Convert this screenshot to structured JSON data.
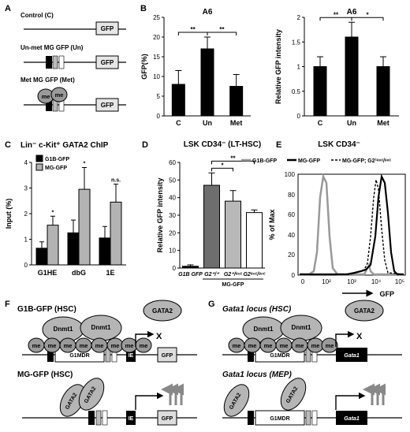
{
  "panels": {
    "A": {
      "letter": "A",
      "constructs": [
        {
          "label": "Control (C)",
          "gfp": "GFP"
        },
        {
          "label": "Un-met MG GFP (Un)",
          "gfp": "GFP"
        },
        {
          "label": "Met MG GFP (Met)",
          "gfp": "GFP",
          "me": "me"
        }
      ]
    },
    "B": {
      "letter": "B"
    },
    "C": {
      "letter": "C"
    },
    "D": {
      "letter": "D"
    },
    "E": {
      "letter": "E",
      "title": "LSK CD34⁻",
      "legend": [
        "G1B-GFP",
        "MG-GFP",
        "MG-GFP; G2¹ᵉⁿᶜ/ᵉⁿᶜ"
      ],
      "xlabel": "GFP",
      "ylabel": "% of Max",
      "xticks": [
        "0",
        "10²",
        "10³",
        "10⁴",
        "10⁵"
      ],
      "yticks": [
        "0",
        "20",
        "40",
        "60",
        "80",
        "100"
      ]
    },
    "F": {
      "letter": "F",
      "top_title": "G1B-GFP (HSC)",
      "bottom_title": "MG-GFP (HSC)",
      "gata2": "GATA2",
      "dnmt1": "Dnmt1",
      "me": "me",
      "g1mdr": "G1MDR",
      "ie": "IE",
      "gfp": "GFP",
      "x_mark": "X"
    },
    "G": {
      "letter": "G",
      "top_title": "Gata1 locus (HSC)",
      "bottom_title": "Gata1 locus (MEP)",
      "gata2": "GATA2",
      "dnmt1": "Dnmt1",
      "me": "me",
      "g1mdr": "G1MDR",
      "gata1": "Gata1",
      "x_mark": "X"
    }
  },
  "chart_data": [
    {
      "id": "B-left",
      "type": "bar",
      "title": "A6",
      "ylabel": "GFP(%)",
      "categories": [
        "C",
        "Un",
        "Met"
      ],
      "values": [
        8,
        17,
        7.5
      ],
      "errors": [
        3.5,
        3,
        3
      ],
      "ylim": [
        0,
        25
      ],
      "yticks": [
        0,
        5,
        10,
        15,
        20,
        25
      ],
      "significance": [
        {
          "from": 0,
          "to": 1,
          "label": "**"
        },
        {
          "from": 1,
          "to": 2,
          "label": "**"
        }
      ],
      "color": "#000000"
    },
    {
      "id": "B-right",
      "type": "bar",
      "title": "A6",
      "ylabel": "Relative GFP intensity",
      "categories": [
        "C",
        "Un",
        "Met"
      ],
      "values": [
        1.0,
        1.6,
        1.0
      ],
      "errors": [
        0.2,
        0.3,
        0.2
      ],
      "ylim": [
        0,
        2
      ],
      "yticks": [
        0,
        0.5,
        1,
        1.5,
        2
      ],
      "significance": [
        {
          "from": 0,
          "to": 1,
          "label": "**"
        },
        {
          "from": 1,
          "to": 2,
          "label": "*"
        }
      ],
      "color": "#000000"
    },
    {
      "id": "C",
      "type": "bar",
      "title": "Lin⁻ c-Kit⁺ GATA2 ChIP",
      "ylabel": "Input (%)",
      "categories": [
        "G1HE",
        "dbG",
        "1E"
      ],
      "series": [
        {
          "name": "G1B-GFP",
          "values": [
            0.65,
            1.25,
            1.05
          ],
          "errors": [
            0.25,
            0.5,
            0.45
          ],
          "color": "#000000"
        },
        {
          "name": "MG-GFP",
          "values": [
            1.55,
            2.95,
            2.45
          ],
          "errors": [
            0.35,
            0.85,
            0.7
          ],
          "color": "#b3b3b3"
        }
      ],
      "annotations": [
        "*",
        "*",
        "n.s."
      ],
      "ylim": [
        0,
        4
      ],
      "yticks": [
        0,
        1,
        2,
        3,
        4
      ]
    },
    {
      "id": "D",
      "type": "bar",
      "title": "LSK CD34⁻ (LT-HSC)",
      "ylabel": "Relative GFP intensity",
      "categories": [
        "G1B GFP",
        "G2⁺/⁺",
        "G2⁺/ᵉⁿᶜ",
        "G2ᵉⁿᶜ/ᵉⁿᶜ"
      ],
      "group_label": "MG-GFP",
      "values": [
        1,
        47,
        38,
        31.5
      ],
      "errors": [
        0.8,
        7,
        6,
        1.5
      ],
      "colors": [
        "#000000",
        "#6e6e6e",
        "#b8b8b8",
        "#ffffff"
      ],
      "ylim": [
        0,
        60
      ],
      "yticks": [
        0,
        10,
        20,
        30,
        40,
        50,
        60
      ],
      "significance": [
        {
          "from": 1,
          "to": 2,
          "label": "*"
        },
        {
          "from": 1,
          "to": 3,
          "label": "**"
        }
      ]
    }
  ]
}
